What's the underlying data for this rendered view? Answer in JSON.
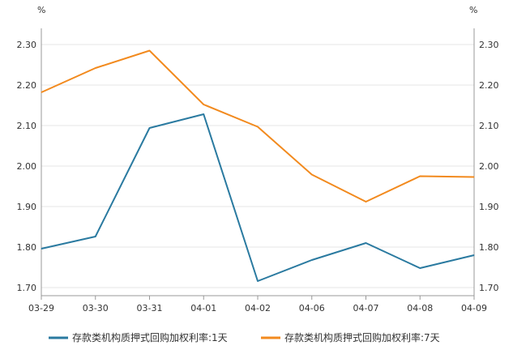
{
  "chart_data": {
    "type": "line",
    "categories": [
      "03-29",
      "03-30",
      "03-31",
      "04-01",
      "04-02",
      "04-06",
      "04-07",
      "04-08",
      "04-09"
    ],
    "series": [
      {
        "name": "存款类机构质押式回购加权利率:1天",
        "color": "#2a7aa0",
        "values": [
          1.796,
          1.826,
          2.094,
          2.128,
          1.716,
          1.768,
          1.81,
          1.748,
          1.78
        ]
      },
      {
        "name": "存款类机构质押式回购加权利率:7天",
        "color": "#f28a1e",
        "values": [
          2.182,
          2.242,
          2.285,
          2.152,
          2.097,
          1.979,
          1.912,
          1.975,
          1.973
        ]
      }
    ],
    "yticks": [
      "1.70",
      "1.80",
      "1.90",
      "2.00",
      "2.10",
      "2.20",
      "2.30"
    ],
    "ylim": [
      1.68,
      2.34
    ],
    "left_unit": "%",
    "right_unit": "%",
    "grid": true,
    "legend": "bottom"
  }
}
